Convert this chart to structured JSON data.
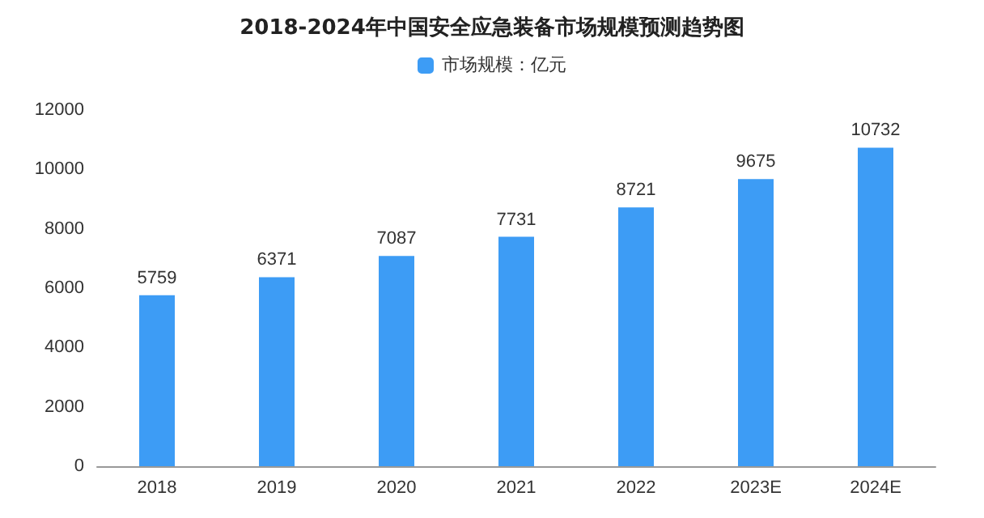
{
  "chart_data": {
    "type": "bar",
    "title": "2018-2024年中国安全应急装备市场规模预测趋势图",
    "categories": [
      "2018",
      "2019",
      "2020",
      "2021",
      "2022",
      "2023E",
      "2024E"
    ],
    "series": [
      {
        "name": "市场规模：亿元",
        "color": "#3d9cf5",
        "values": [
          5759,
          6371,
          7087,
          7731,
          8721,
          9675,
          10732
        ]
      }
    ],
    "ylim": [
      0,
      12000
    ],
    "yticks": [
      0,
      2000,
      4000,
      6000,
      8000,
      10000,
      12000
    ],
    "grid": false,
    "legend": "top",
    "data_labels": true
  }
}
